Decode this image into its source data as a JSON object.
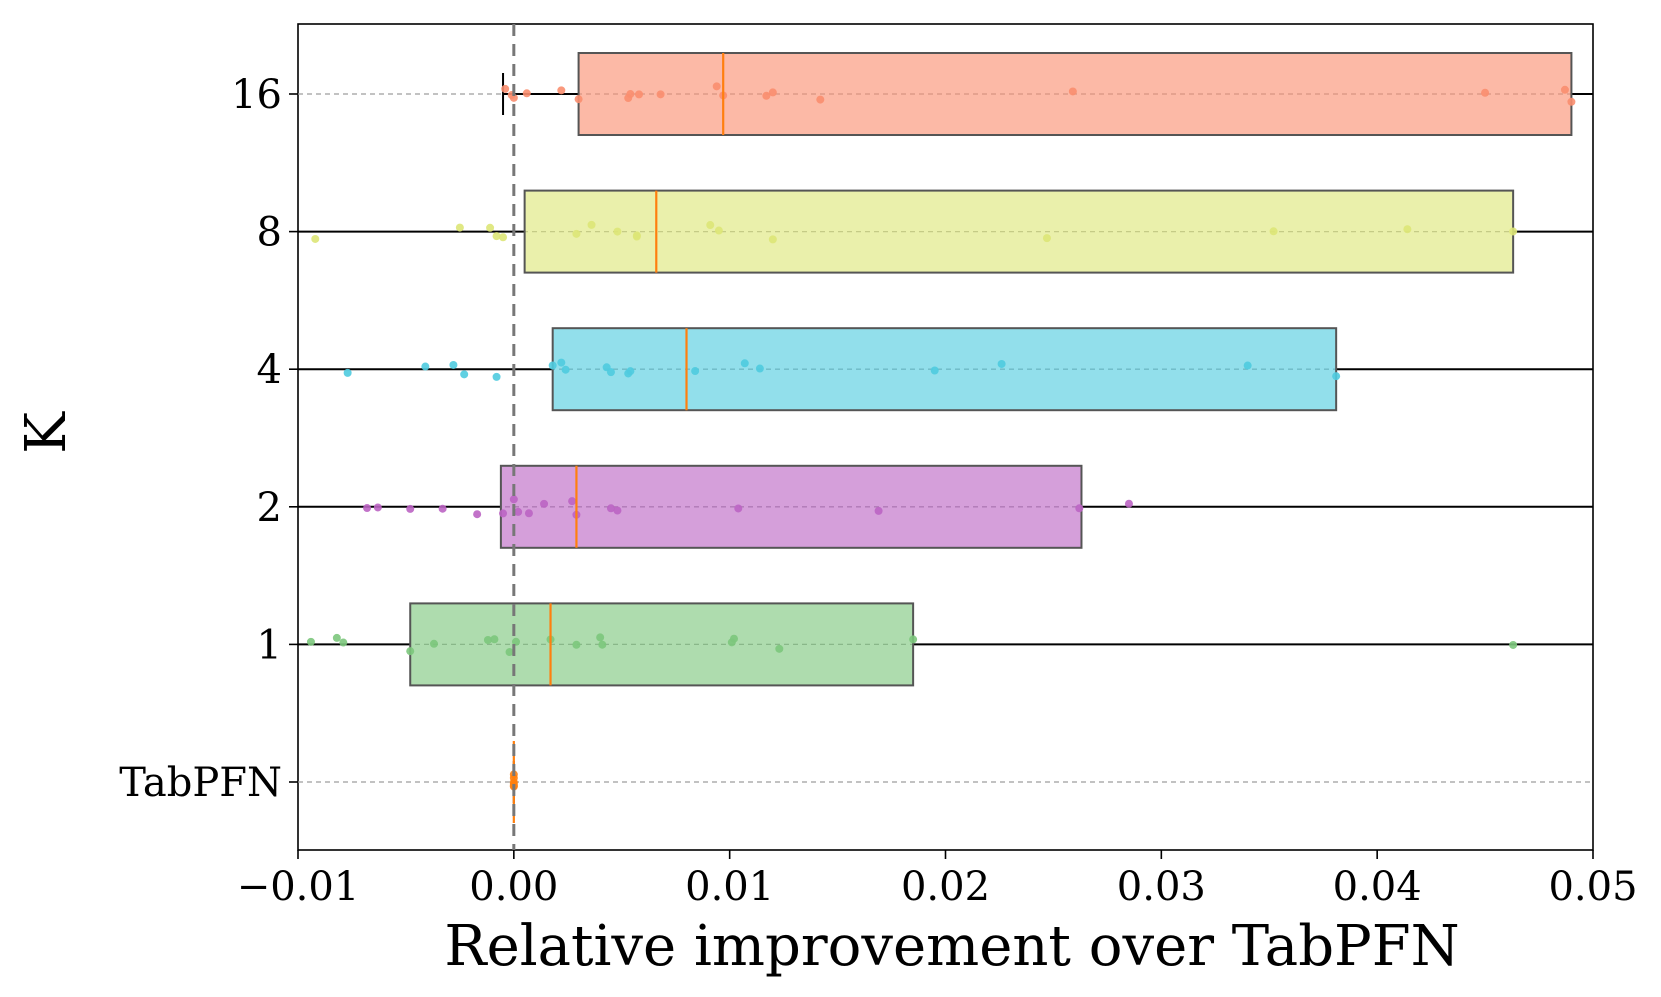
{
  "chart_data": {
    "type": "boxplot-horizontal",
    "title": "",
    "xlabel": "Relative improvement over TabPFN",
    "ylabel": "K",
    "xlim": [
      -0.01,
      0.05
    ],
    "xticks": [
      -0.01,
      0.0,
      0.01,
      0.02,
      0.03,
      0.04,
      0.05
    ],
    "xtick_labels": [
      "−0.01",
      "0.00",
      "0.01",
      "0.02",
      "0.03",
      "0.04",
      "0.05"
    ],
    "reference_line": 0.0,
    "categories": [
      "16",
      "8",
      "4",
      "2",
      "1",
      "TabPFN"
    ],
    "series": [
      {
        "name": "16",
        "color": "#fa8e6f",
        "q1": 0.003,
        "median": 0.0097,
        "q3": 0.049,
        "whisker_low": -0.0005,
        "whisker_high": 0.0505,
        "points": [
          -0.0004,
          0.0,
          -0.0001,
          0.0006,
          0.0022,
          0.003,
          0.0053,
          0.0054,
          0.0058,
          0.0068,
          0.0094,
          0.0097,
          0.0117,
          0.012,
          0.0142,
          0.0259,
          0.045,
          0.0487,
          0.049
        ]
      },
      {
        "name": "8",
        "color": "#dde677",
        "q1": 0.0005,
        "median": 0.0066,
        "q3": 0.0463,
        "whisker_low": -0.01,
        "whisker_high": 0.0505,
        "points": [
          -0.0092,
          -0.0025,
          -0.0011,
          -0.0008,
          -0.0005,
          0.0029,
          0.0036,
          0.0048,
          0.0057,
          0.0057,
          0.0091,
          0.0095,
          0.012,
          0.0247,
          0.0352,
          0.0414,
          0.0463
        ]
      },
      {
        "name": "4",
        "color": "#4fcbdf",
        "q1": 0.0018,
        "median": 0.008,
        "q3": 0.0381,
        "whisker_low": -0.01,
        "whisker_high": 0.0505,
        "points": [
          -0.0077,
          -0.0041,
          -0.0028,
          -0.0023,
          -0.0008,
          0.0018,
          0.0022,
          0.0024,
          0.0043,
          0.0045,
          0.0053,
          0.0054,
          0.0084,
          0.0107,
          0.0114,
          0.0195,
          0.0226,
          0.034,
          0.0381
        ]
      },
      {
        "name": "2",
        "color": "#bb64c3",
        "q1": -0.0006,
        "median": 0.0029,
        "q3": 0.0263,
        "whisker_low": -0.01,
        "whisker_high": 0.0505,
        "points": [
          -0.0068,
          -0.0063,
          -0.0048,
          -0.0033,
          -0.0017,
          -0.0005,
          0.0,
          0.0002,
          0.0007,
          0.0014,
          0.0027,
          0.0029,
          0.0045,
          0.0048,
          0.0104,
          0.0169,
          0.0262,
          0.0285
        ]
      },
      {
        "name": "1",
        "color": "#7cc67c",
        "q1": -0.0048,
        "median": 0.0017,
        "q3": 0.0185,
        "whisker_low": -0.01,
        "whisker_high": 0.0505,
        "points": [
          -0.0094,
          -0.0082,
          -0.0079,
          -0.0048,
          -0.0037,
          -0.0012,
          -0.0009,
          -0.0002,
          0.0001,
          0.0017,
          0.0029,
          0.004,
          0.0041,
          0.0101,
          0.0102,
          0.0123,
          0.0185,
          0.0463
        ]
      },
      {
        "name": "TabPFN",
        "color": "#ff7f0e",
        "q1": 0.0,
        "median": 0.0,
        "q3": 0.0,
        "whisker_low": 0.0,
        "whisker_high": 0.0,
        "points": [
          0.0,
          0.0,
          0.0,
          0.0,
          0.0,
          0.0
        ]
      }
    ]
  }
}
